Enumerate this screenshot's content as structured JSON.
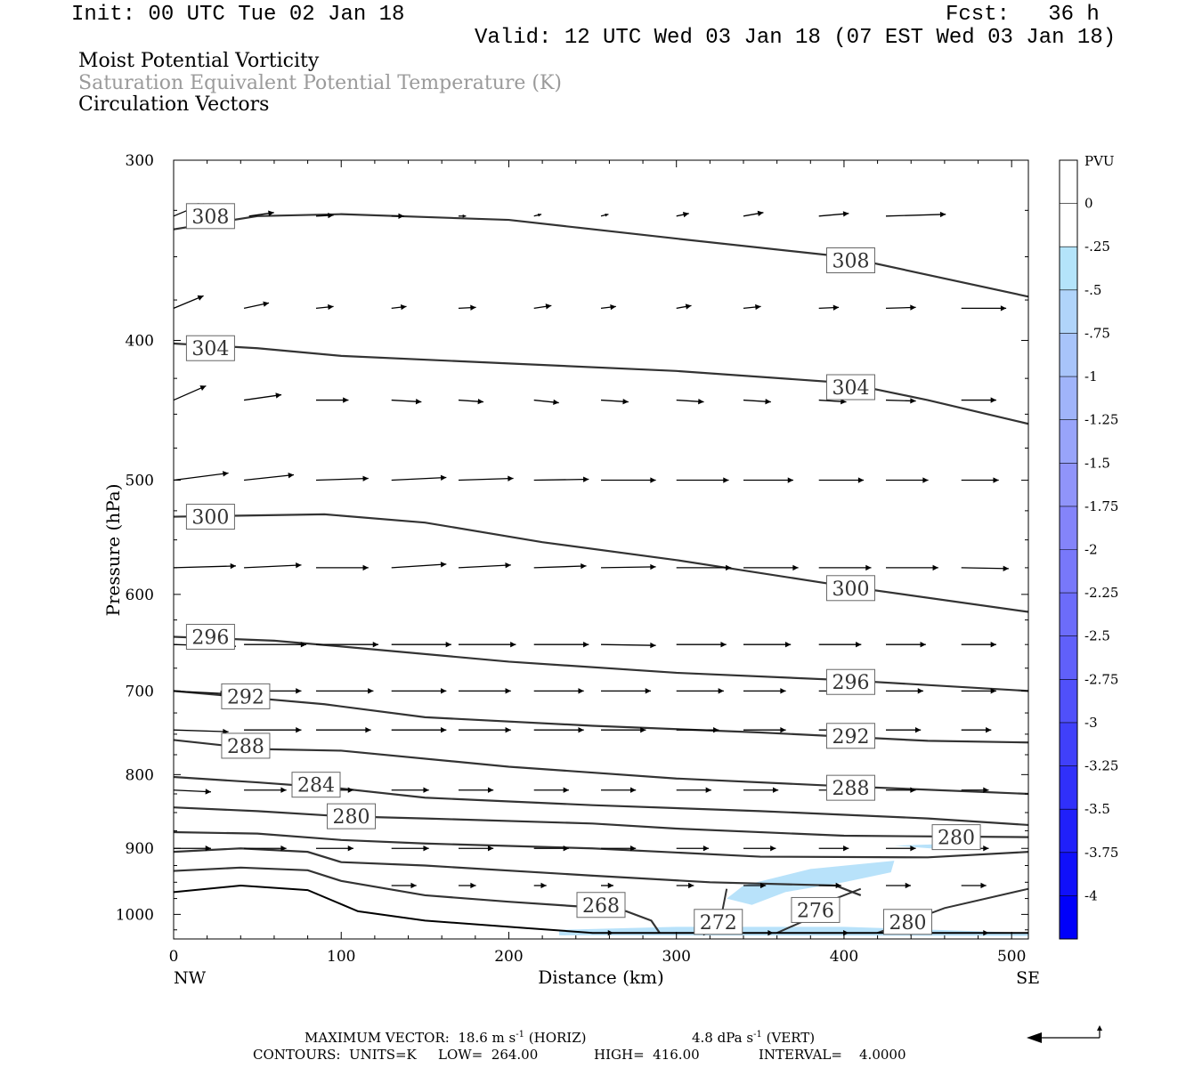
{
  "header": {
    "init": "Init: 00 UTC Tue 02 Jan 18",
    "fcst": "Fcst:   36 h",
    "valid": "Valid: 12 UTC Wed 03 Jan 18 (07 EST Wed 03 Jan 18)"
  },
  "titles": {
    "line1": "Moist Potential Vorticity",
    "line2": "Saturation Equivalent Potential Temperature (K)",
    "line3": "Circulation Vectors"
  },
  "footer": {
    "max_vector_label": "MAXIMUM VECTOR:  18.6 m s",
    "max_vector_horiz": "(HORIZ)",
    "vert_value": "4.8 dPa s",
    "vert_label": "(VERT)",
    "exp": "-1",
    "contours_label": "CONTOURS:  UNITS=K",
    "low": "LOW=  264.00",
    "high": "HIGH=  416.00",
    "interval": "INTERVAL=    4.0000"
  },
  "chart_data": {
    "type": "contour",
    "xlabel": "Distance (km)",
    "ylabel": "Pressure (hPa)",
    "xlim": [
      0,
      510
    ],
    "ylim": [
      300,
      1040
    ],
    "y_scale": "log-pressure",
    "x_ticks": [
      "0",
      "100",
      "200",
      "300",
      "400",
      "500"
    ],
    "x_tick_values": [
      0,
      100,
      200,
      300,
      400,
      500
    ],
    "y_ticks": [
      "300",
      "400",
      "500",
      "600",
      "700",
      "800",
      "900",
      "1000"
    ],
    "y_tick_values": [
      300,
      400,
      500,
      600,
      700,
      800,
      900,
      1000
    ],
    "x_endpoints": {
      "left": "NW",
      "right": "SE"
    },
    "colorbar": {
      "title": "PVU",
      "labels": [
        "0",
        "-.25",
        "-.5",
        "-.75",
        "-1",
        "-1.25",
        "-1.5",
        "-1.75",
        "-2",
        "-2.25",
        "-2.5",
        "-2.75",
        "-3",
        "-3.25",
        "-3.5",
        "-3.75",
        "-4"
      ],
      "colors": [
        "#ffffff",
        "#ffffff",
        "#b4e4fa",
        "#b0d4fa",
        "#a8c4fa",
        "#a0b4fa",
        "#98a4fa",
        "#9094fa",
        "#8484fa",
        "#7878fa",
        "#6c6cfa",
        "#6060fa",
        "#5050fa",
        "#4040fa",
        "#3030fa",
        "#2020fa",
        "#1010fa",
        "#0000fa"
      ]
    },
    "contours": [
      {
        "label": "308",
        "points": [
          [
            0,
            335
          ],
          [
            50,
            328
          ],
          [
            100,
            327
          ],
          [
            200,
            330
          ],
          [
            300,
            340
          ],
          [
            400,
            350
          ],
          [
            510,
            373
          ]
        ],
        "labels_at": [
          [
            22,
            328
          ],
          [
            404,
            352
          ]
        ]
      },
      {
        "label": "304",
        "points": [
          [
            0,
            402
          ],
          [
            50,
            405
          ],
          [
            100,
            410
          ],
          [
            200,
            415
          ],
          [
            300,
            420
          ],
          [
            400,
            428
          ],
          [
            450,
            440
          ],
          [
            510,
            457
          ]
        ],
        "labels_at": [
          [
            22,
            405
          ],
          [
            404,
            431
          ]
        ]
      },
      {
        "label": "300",
        "points": [
          [
            0,
            530
          ],
          [
            90,
            528
          ],
          [
            150,
            535
          ],
          [
            220,
            552
          ],
          [
            300,
            568
          ],
          [
            400,
            592
          ],
          [
            510,
            617
          ]
        ],
        "labels_at": [
          [
            22,
            530
          ],
          [
            404,
            594
          ]
        ]
      },
      {
        "label": "296",
        "points": [
          [
            0,
            642
          ],
          [
            60,
            646
          ],
          [
            100,
            652
          ],
          [
            200,
            668
          ],
          [
            300,
            680
          ],
          [
            400,
            688
          ],
          [
            510,
            700
          ]
        ],
        "labels_at": [
          [
            22,
            642
          ],
          [
            404,
            690
          ]
        ]
      },
      {
        "label": "292",
        "points": [
          [
            0,
            700
          ],
          [
            90,
            715
          ],
          [
            150,
            730
          ],
          [
            250,
            740
          ],
          [
            350,
            748
          ],
          [
            450,
            758
          ],
          [
            510,
            760
          ]
        ],
        "labels_at": [
          [
            43,
            706
          ],
          [
            404,
            752
          ]
        ]
      },
      {
        "label": "288",
        "points": [
          [
            0,
            757
          ],
          [
            50,
            768
          ],
          [
            100,
            770
          ],
          [
            200,
            790
          ],
          [
            300,
            805
          ],
          [
            400,
            815
          ],
          [
            510,
            825
          ]
        ],
        "labels_at": [
          [
            43,
            764
          ],
          [
            404,
            817
          ]
        ]
      },
      {
        "label": "284",
        "points": [
          [
            0,
            803
          ],
          [
            50,
            810
          ],
          [
            100,
            818
          ],
          [
            150,
            830
          ],
          [
            250,
            840
          ],
          [
            350,
            848
          ],
          [
            450,
            858
          ],
          [
            510,
            867
          ]
        ],
        "labels_at": [
          [
            85,
            813
          ]
        ]
      },
      {
        "label": "280",
        "points": [
          [
            0,
            843
          ],
          [
            50,
            848
          ],
          [
            100,
            855
          ],
          [
            150,
            858
          ],
          [
            250,
            865
          ],
          [
            300,
            872
          ],
          [
            400,
            882
          ],
          [
            510,
            884
          ]
        ],
        "labels_at": [
          [
            106,
            855
          ],
          [
            467,
            884
          ]
        ]
      },
      {
        "label": "276",
        "points": [
          [
            0,
            877
          ],
          [
            50,
            879
          ],
          [
            100,
            888
          ],
          [
            150,
            893
          ],
          [
            250,
            900
          ],
          [
            350,
            912
          ],
          [
            450,
            913
          ],
          [
            510,
            905
          ]
        ],
        "labels_at": []
      },
      {
        "label": "272",
        "points": [
          [
            0,
            905
          ],
          [
            40,
            900
          ],
          [
            80,
            905
          ],
          [
            100,
            920
          ],
          [
            150,
            925
          ],
          [
            250,
            940
          ],
          [
            320,
            950
          ],
          [
            395,
            955
          ],
          [
            400,
            960
          ],
          [
            410,
            970
          ]
        ],
        "labels_at": []
      },
      {
        "label": "268",
        "points": [
          [
            0,
            933
          ],
          [
            40,
            928
          ],
          [
            80,
            932
          ],
          [
            100,
            948
          ],
          [
            150,
            970
          ],
          [
            200,
            980
          ],
          [
            245,
            988
          ],
          [
            270,
            995
          ],
          [
            285,
            1010
          ],
          [
            290,
            1030
          ]
        ],
        "labels_at": [
          [
            255,
            985
          ]
        ]
      }
    ],
    "isolated_labels": [
      {
        "label": "272",
        "x": 325,
        "y": 1012
      },
      {
        "label": "276",
        "x": 383,
        "y": 993
      },
      {
        "label": "280",
        "x": 438,
        "y": 1012
      }
    ],
    "pv_shading": [
      {
        "level": "-.25 to -.5",
        "polygon": [
          [
            330,
            975
          ],
          [
            340,
            955
          ],
          [
            380,
            930
          ],
          [
            430,
            918
          ],
          [
            428,
            935
          ],
          [
            400,
            950
          ],
          [
            365,
            965
          ],
          [
            345,
            985
          ]
        ]
      },
      {
        "level": "-.25 to -.5",
        "polygon": [
          [
            230,
            1025
          ],
          [
            300,
            1020
          ],
          [
            400,
            1020
          ],
          [
            510,
            1030
          ],
          [
            510,
            1035
          ],
          [
            230,
            1034
          ]
        ]
      },
      {
        "level": "-.25 to -.5",
        "polygon": [
          [
            430,
            896
          ],
          [
            470,
            893
          ],
          [
            462,
            902
          ]
        ]
      }
    ],
    "vectors": {
      "description": "circulation vectors (horizontal wind along section + vertical motion)",
      "max_horiz": "18.6 m s-1",
      "max_vert": "4.8 dPa s-1"
    }
  }
}
